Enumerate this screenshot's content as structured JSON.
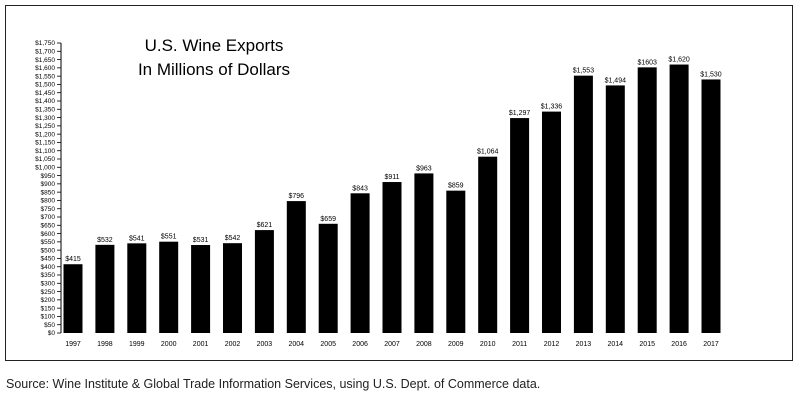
{
  "source_note": "Source: Wine Institute & Global Trade Information Services, using U.S. Dept. of Commerce data.",
  "chart_data": {
    "type": "bar",
    "title_lines": [
      "U.S. Wine Exports",
      "In Millions of Dollars"
    ],
    "categories": [
      "1997",
      "1998",
      "1999",
      "2000",
      "2001",
      "2002",
      "2003",
      "2004",
      "2005",
      "2006",
      "2007",
      "2008",
      "2009",
      "2010",
      "2011",
      "2012",
      "2013",
      "2014",
      "2015",
      "2016",
      "2017"
    ],
    "values": [
      415,
      532,
      541,
      551,
      531,
      542,
      621,
      796,
      659,
      843,
      911,
      963,
      859,
      1064,
      1297,
      1336,
      1553,
      1494,
      1603,
      1620,
      1530
    ],
    "data_labels": [
      "$415",
      "$532",
      "$541",
      "$551",
      "$531",
      "$542",
      "$621",
      "$796",
      "$659",
      "$843",
      "$911",
      "$963",
      "$859",
      "$1,064",
      "$1,297",
      "$1,336",
      "$1,553",
      "$1,494",
      "$1603",
      "$1,620",
      "$1,530"
    ],
    "ylim": [
      0,
      1750
    ],
    "ytick_step": 50,
    "ytick_labels": [
      "$0",
      "$50",
      "$100",
      "$150",
      "$200",
      "$250",
      "$300",
      "$350",
      "$400",
      "$450",
      "$500",
      "$550",
      "$600",
      "$650",
      "$700",
      "$750",
      "$800",
      "$850",
      "$900",
      "$950",
      "$1,000",
      "$1,050",
      "$1,100",
      "$1,150",
      "$1,200",
      "$1,250",
      "$1,300",
      "$1,350",
      "$1,400",
      "$1,450",
      "$1,500",
      "$1,550",
      "$1,600",
      "$1,650",
      "$1,700",
      "$1,750"
    ],
    "xlabel": "",
    "ylabel": "",
    "bar_color": "#000000",
    "grid": false,
    "legend": "none"
  }
}
